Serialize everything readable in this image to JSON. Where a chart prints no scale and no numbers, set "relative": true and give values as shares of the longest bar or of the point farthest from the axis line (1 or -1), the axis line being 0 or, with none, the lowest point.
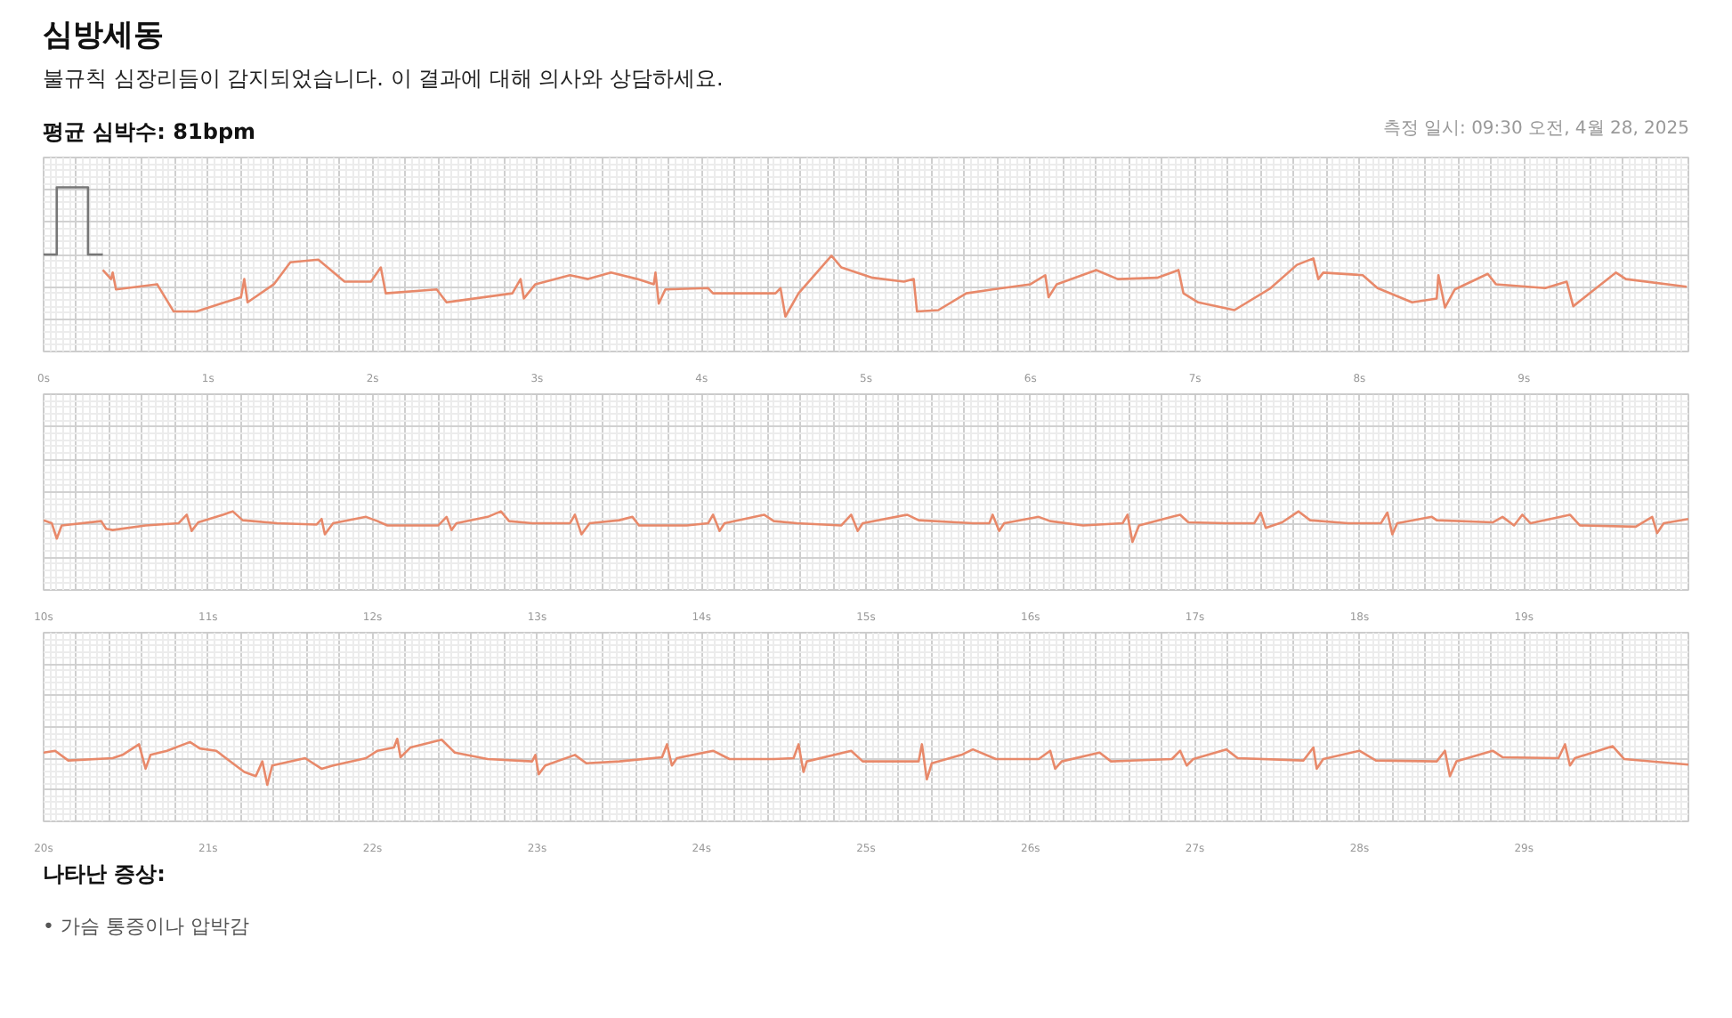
{
  "chart_data": [
    {
      "type": "line",
      "title": "심방세동",
      "subtitle": "불규칙 심장리듬이 감지되었습니다. 이 결과에 대해 의사와 상담하세요.",
      "annotations": [
        "평균 심박수: 81bpm",
        "측정 일시: 09:30 오전, 4월 28, 2025"
      ],
      "relative": true,
      "grid": true,
      "xlim": [
        0,
        10
      ],
      "xticks": [
        {
          "value": 0,
          "label": "0s"
        },
        {
          "value": 1,
          "label": "1s"
        },
        {
          "value": 2,
          "label": "2s"
        },
        {
          "value": 3,
          "label": "3s"
        },
        {
          "value": 4,
          "label": "4s"
        },
        {
          "value": 5,
          "label": "5s"
        },
        {
          "value": 6,
          "label": "6s"
        },
        {
          "value": 7,
          "label": "7s"
        },
        {
          "value": 8,
          "label": "8s"
        },
        {
          "value": 9,
          "label": "9s"
        }
      ],
      "series": [
        {
          "color": "#777777",
          "x": [
            0,
            0.08,
            0.08,
            0.27,
            0.27,
            0.36
          ],
          "values": [
            0.48,
            0.48,
            1,
            1,
            0.48,
            0.48
          ]
        },
        {
          "color": "#e8896a",
          "x": [
            0.36,
            0.41,
            0.42,
            0.44,
            0.69,
            0.79,
            0.93,
            1.2,
            1.22,
            1.24,
            1.4,
            1.5,
            1.67,
            1.83,
            1.99,
            2.05,
            2.08,
            2.39,
            2.45,
            2.85,
            2.9,
            2.92,
            2.99,
            3.2,
            3.31,
            3.45,
            3.61,
            3.71,
            3.72,
            3.74,
            3.78,
            4.04,
            4.07,
            4.45,
            4.48,
            4.51,
            4.59,
            4.79,
            4.85,
            5.04,
            5.23,
            5.29,
            5.31,
            5.44,
            5.61,
            5.77,
            6.0,
            6.09,
            6.11,
            6.16,
            6.4,
            6.53,
            6.77,
            6.9,
            6.93,
            7.02,
            7.24,
            7.46,
            7.62,
            7.72,
            7.75,
            7.78,
            8.02,
            8.11,
            8.32,
            8.47,
            8.48,
            8.52,
            8.58,
            8.78,
            8.83,
            9.13,
            9.26,
            9.3,
            9.4,
            9.56,
            9.62,
            9.99
          ],
          "values": [
            0.36,
            0.29,
            0.34,
            0.21,
            0.25,
            0.04,
            0.04,
            0.15,
            0.29,
            0.11,
            0.25,
            0.42,
            0.44,
            0.27,
            0.27,
            0.38,
            0.18,
            0.21,
            0.11,
            0.18,
            0.29,
            0.14,
            0.25,
            0.32,
            0.29,
            0.34,
            0.29,
            0.25,
            0.34,
            0.1,
            0.21,
            0.22,
            0.18,
            0.18,
            0.22,
            0,
            0.18,
            0.47,
            0.38,
            0.3,
            0.27,
            0.29,
            0.04,
            0.05,
            0.18,
            0.21,
            0.25,
            0.32,
            0.15,
            0.25,
            0.36,
            0.29,
            0.3,
            0.36,
            0.18,
            0.11,
            0.05,
            0.22,
            0.4,
            0.45,
            0.29,
            0.34,
            0.32,
            0.22,
            0.11,
            0.14,
            0.32,
            0.07,
            0.21,
            0.33,
            0.25,
            0.22,
            0.27,
            0.08,
            0.18,
            0.34,
            0.29,
            0.23
          ]
        }
      ]
    },
    {
      "type": "line",
      "relative": true,
      "grid": true,
      "xlim": [
        10,
        20
      ],
      "xticks": [
        {
          "value": 10,
          "label": "10s"
        },
        {
          "value": 11,
          "label": "11s"
        },
        {
          "value": 12,
          "label": "12s"
        },
        {
          "value": 13,
          "label": "13s"
        },
        {
          "value": 14,
          "label": "14s"
        },
        {
          "value": 15,
          "label": "15s"
        },
        {
          "value": 16,
          "label": "16s"
        },
        {
          "value": 17,
          "label": "17s"
        },
        {
          "value": 18,
          "label": "18s"
        },
        {
          "value": 19,
          "label": "19s"
        }
      ],
      "series": [
        {
          "color": "#e8896a",
          "x": [
            10.0,
            10.05,
            10.08,
            10.11,
            10.35,
            10.38,
            10.42,
            10.62,
            10.82,
            10.87,
            10.9,
            10.94,
            11.09,
            11.15,
            11.21,
            11.42,
            11.66,
            11.69,
            11.71,
            11.76,
            11.96,
            12.03,
            12.09,
            12.4,
            12.45,
            12.48,
            12.51,
            12.7,
            12.78,
            12.83,
            12.97,
            13.2,
            13.23,
            13.27,
            13.32,
            13.5,
            13.58,
            13.62,
            13.91,
            14.04,
            14.07,
            14.11,
            14.14,
            14.38,
            14.44,
            14.58,
            14.85,
            14.91,
            14.95,
            14.98,
            15.25,
            15.32,
            15.65,
            15.75,
            15.77,
            15.81,
            15.84,
            16.05,
            16.12,
            16.32,
            16.56,
            16.59,
            16.62,
            16.66,
            16.86,
            16.91,
            16.96,
            17.19,
            17.36,
            17.4,
            17.43,
            17.53,
            17.63,
            17.7,
            17.93,
            18.13,
            18.17,
            18.2,
            18.23,
            18.44,
            18.47,
            18.81,
            18.87,
            18.94,
            18.99,
            19.04,
            19.28,
            19.34,
            19.68,
            19.78,
            19.81,
            19.85,
            20.0
          ],
          "values": [
            0.71,
            0.61,
            0.11,
            0.54,
            0.68,
            0.43,
            0.39,
            0.54,
            0.61,
            0.89,
            0.36,
            0.64,
            0.89,
            1.0,
            0.71,
            0.61,
            0.57,
            0.75,
            0.25,
            0.61,
            0.82,
            0.68,
            0.54,
            0.54,
            0.82,
            0.39,
            0.61,
            0.82,
            1.0,
            0.68,
            0.61,
            0.61,
            0.89,
            0.25,
            0.61,
            0.71,
            0.82,
            0.54,
            0.54,
            0.61,
            0.89,
            0.36,
            0.61,
            0.89,
            0.68,
            0.61,
            0.54,
            0.89,
            0.36,
            0.61,
            0.89,
            0.71,
            0.61,
            0.61,
            0.89,
            0.36,
            0.61,
            0.82,
            0.68,
            0.54,
            0.61,
            0.89,
            0,
            0.54,
            0.82,
            0.89,
            0.64,
            0.61,
            0.61,
            0.96,
            0.46,
            0.64,
            1.0,
            0.71,
            0.61,
            0.61,
            0.96,
            0.25,
            0.61,
            0.82,
            0.71,
            0.64,
            0.82,
            0.54,
            0.89,
            0.61,
            0.89,
            0.54,
            0.5,
            0.82,
            0.29,
            0.61,
            0.75
          ]
        }
      ]
    },
    {
      "type": "line",
      "relative": true,
      "grid": true,
      "xlim": [
        20,
        30
      ],
      "annotations": [
        "나타난 증상:",
        "• 가슴 통증이나 압박감"
      ],
      "xticks": [
        {
          "value": 20,
          "label": "20s"
        },
        {
          "value": 21,
          "label": "21s"
        },
        {
          "value": 22,
          "label": "22s"
        },
        {
          "value": 23,
          "label": "23s"
        },
        {
          "value": 24,
          "label": "24s"
        },
        {
          "value": 25,
          "label": "25s"
        },
        {
          "value": 26,
          "label": "26s"
        },
        {
          "value": 27,
          "label": "27s"
        },
        {
          "value": 28,
          "label": "28s"
        },
        {
          "value": 29,
          "label": "29s"
        }
      ],
      "series": [
        {
          "color": "#e8896a",
          "x": [
            20.0,
            20.07,
            20.15,
            20.42,
            20.48,
            20.58,
            20.62,
            20.65,
            20.75,
            20.89,
            20.95,
            21.05,
            21.22,
            21.29,
            21.33,
            21.36,
            21.39,
            21.59,
            21.69,
            21.76,
            21.96,
            22.03,
            22.13,
            22.15,
            22.17,
            22.23,
            22.42,
            22.5,
            22.7,
            22.97,
            22.99,
            23.01,
            23.05,
            23.23,
            23.3,
            23.5,
            23.76,
            23.79,
            23.82,
            23.85,
            24.07,
            24.17,
            24.44,
            24.56,
            24.59,
            24.62,
            24.64,
            24.91,
            24.98,
            25.32,
            25.34,
            25.37,
            25.4,
            25.58,
            25.65,
            25.79,
            26.05,
            26.12,
            26.15,
            26.19,
            26.42,
            26.49,
            26.86,
            26.91,
            26.95,
            26.99,
            27.19,
            27.26,
            27.66,
            27.72,
            27.74,
            27.78,
            28.0,
            28.1,
            28.47,
            28.52,
            28.55,
            28.59,
            28.81,
            28.87,
            29.21,
            29.25,
            29.28,
            29.31,
            29.54,
            29.61,
            30.0
          ],
          "values": [
            0.7,
            0.74,
            0.53,
            0.58,
            0.65,
            0.88,
            0.35,
            0.65,
            0.74,
            0.93,
            0.79,
            0.74,
            0.28,
            0.19,
            0.51,
            0,
            0.42,
            0.58,
            0.35,
            0.42,
            0.58,
            0.74,
            0.81,
            1.0,
            0.6,
            0.81,
            0.98,
            0.7,
            0.56,
            0.51,
            0.65,
            0.23,
            0.42,
            0.65,
            0.47,
            0.51,
            0.6,
            0.88,
            0.42,
            0.58,
            0.74,
            0.56,
            0.56,
            0.58,
            0.88,
            0.28,
            0.51,
            0.74,
            0.51,
            0.51,
            0.88,
            0.12,
            0.47,
            0.65,
            0.77,
            0.56,
            0.56,
            0.74,
            0.35,
            0.51,
            0.7,
            0.51,
            0.56,
            0.74,
            0.42,
            0.56,
            0.77,
            0.58,
            0.53,
            0.81,
            0.35,
            0.56,
            0.74,
            0.53,
            0.51,
            0.74,
            0.19,
            0.51,
            0.74,
            0.6,
            0.58,
            0.88,
            0.42,
            0.58,
            0.84,
            0.56,
            0.44
          ]
        }
      ]
    }
  ]
}
